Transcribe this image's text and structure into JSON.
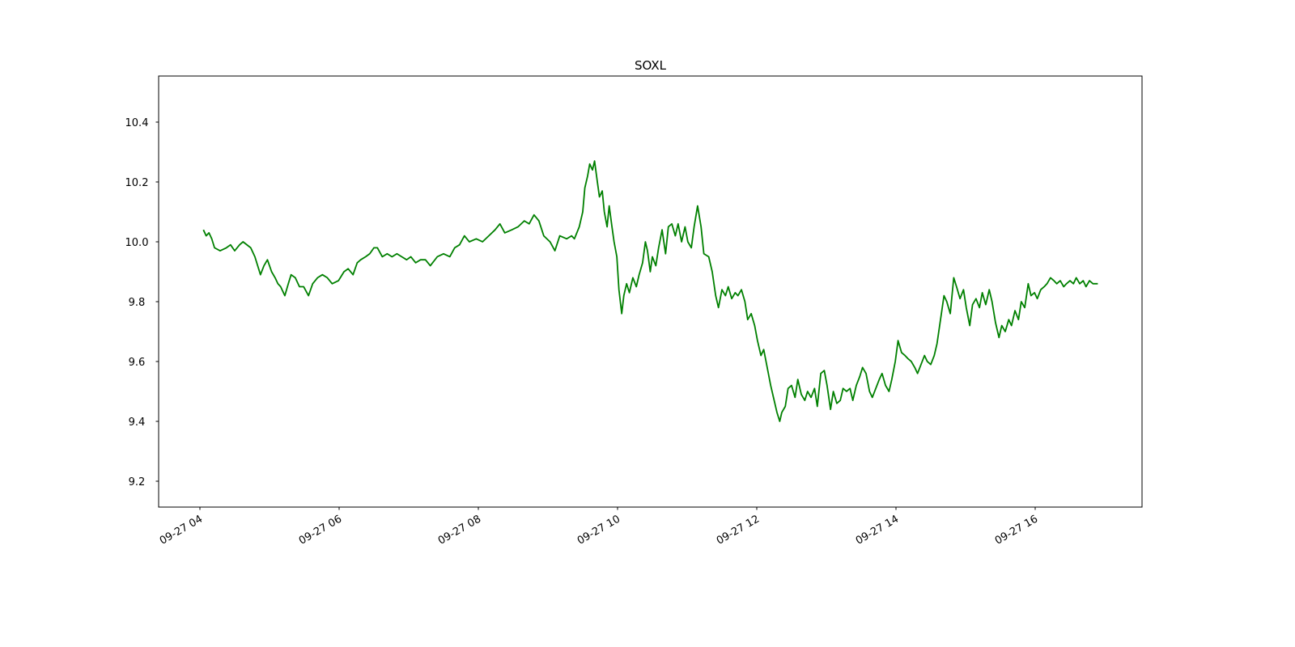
{
  "chart_data": {
    "type": "line",
    "title": "SOXL",
    "color": "#008000",
    "x": [
      4.05,
      4.09,
      4.13,
      4.17,
      4.21,
      4.29,
      4.38,
      4.44,
      4.5,
      4.57,
      4.62,
      4.73,
      4.79,
      4.83,
      4.87,
      4.92,
      4.97,
      5.03,
      5.08,
      5.12,
      5.16,
      5.22,
      5.27,
      5.31,
      5.37,
      5.43,
      5.49,
      5.56,
      5.62,
      5.69,
      5.76,
      5.83,
      5.9,
      5.99,
      6.07,
      6.13,
      6.2,
      6.26,
      6.31,
      6.38,
      6.44,
      6.5,
      6.55,
      6.62,
      6.69,
      6.76,
      6.83,
      6.9,
      6.97,
      7.03,
      7.1,
      7.17,
      7.24,
      7.31,
      7.41,
      7.5,
      7.59,
      7.66,
      7.73,
      7.8,
      7.87,
      7.97,
      8.06,
      8.15,
      8.24,
      8.31,
      8.38,
      8.48,
      8.57,
      8.66,
      8.73,
      8.8,
      8.87,
      8.94,
      9.03,
      9.1,
      9.17,
      9.27,
      9.34,
      9.38,
      9.45,
      9.5,
      9.53,
      9.57,
      9.6,
      9.64,
      9.67,
      9.71,
      9.74,
      9.78,
      9.81,
      9.85,
      9.88,
      9.92,
      9.95,
      9.99,
      10.02,
      10.06,
      10.09,
      10.13,
      10.17,
      10.22,
      10.27,
      10.31,
      10.36,
      10.4,
      10.43,
      10.47,
      10.5,
      10.55,
      10.59,
      10.64,
      10.69,
      10.73,
      10.78,
      10.83,
      10.87,
      10.92,
      10.97,
      11.01,
      11.06,
      11.1,
      11.15,
      11.2,
      11.24,
      11.31,
      11.36,
      11.41,
      11.45,
      11.5,
      11.55,
      11.59,
      11.64,
      11.69,
      11.73,
      11.78,
      11.83,
      11.87,
      11.92,
      11.97,
      12.01,
      12.06,
      12.1,
      12.15,
      12.2,
      12.24,
      12.29,
      12.33,
      12.36,
      12.41,
      12.45,
      12.5,
      12.55,
      12.59,
      12.64,
      12.69,
      12.73,
      12.78,
      12.83,
      12.87,
      12.92,
      12.97,
      13.01,
      13.06,
      13.1,
      13.15,
      13.2,
      13.24,
      13.29,
      13.34,
      13.38,
      13.43,
      13.48,
      13.52,
      13.57,
      13.62,
      13.66,
      13.71,
      13.76,
      13.8,
      13.85,
      13.9,
      13.94,
      13.99,
      14.03,
      14.08,
      14.13,
      14.17,
      14.22,
      14.27,
      14.31,
      14.36,
      14.41,
      14.45,
      14.5,
      14.55,
      14.59,
      14.64,
      14.69,
      14.73,
      14.78,
      14.83,
      14.87,
      14.92,
      14.97,
      15.01,
      15.06,
      15.1,
      15.15,
      15.2,
      15.24,
      15.29,
      15.34,
      15.38,
      15.43,
      15.48,
      15.52,
      15.57,
      15.62,
      15.66,
      15.71,
      15.76,
      15.8,
      15.85,
      15.9,
      15.94,
      15.99,
      16.03,
      16.08,
      16.13,
      16.17,
      16.22,
      16.27,
      16.31,
      16.36,
      16.41,
      16.45,
      16.5,
      16.55,
      16.59,
      16.64,
      16.69,
      16.73,
      16.78,
      16.83,
      16.9
    ],
    "values": [
      10.04,
      10.02,
      10.03,
      10.01,
      9.98,
      9.97,
      9.98,
      9.99,
      9.97,
      9.99,
      10.0,
      9.98,
      9.95,
      9.92,
      9.89,
      9.92,
      9.94,
      9.9,
      9.88,
      9.86,
      9.85,
      9.82,
      9.86,
      9.89,
      9.88,
      9.85,
      9.85,
      9.82,
      9.86,
      9.88,
      9.89,
      9.88,
      9.86,
      9.87,
      9.9,
      9.91,
      9.89,
      9.93,
      9.94,
      9.95,
      9.96,
      9.98,
      9.98,
      9.95,
      9.96,
      9.95,
      9.96,
      9.95,
      9.94,
      9.95,
      9.93,
      9.94,
      9.94,
      9.92,
      9.95,
      9.96,
      9.95,
      9.98,
      9.99,
      10.02,
      10.0,
      10.01,
      10.0,
      10.02,
      10.04,
      10.06,
      10.03,
      10.04,
      10.05,
      10.07,
      10.06,
      10.09,
      10.07,
      10.02,
      10.0,
      9.97,
      10.02,
      10.01,
      10.02,
      10.01,
      10.05,
      10.1,
      10.18,
      10.22,
      10.26,
      10.24,
      10.27,
      10.2,
      10.15,
      10.17,
      10.1,
      10.05,
      10.12,
      10.05,
      10.0,
      9.95,
      9.84,
      9.76,
      9.82,
      9.86,
      9.83,
      9.88,
      9.85,
      9.89,
      9.93,
      10.0,
      9.97,
      9.9,
      9.95,
      9.92,
      9.98,
      10.04,
      9.96,
      10.05,
      10.06,
      10.02,
      10.06,
      10.0,
      10.05,
      10.0,
      9.98,
      10.05,
      10.12,
      10.05,
      9.96,
      9.95,
      9.9,
      9.82,
      9.78,
      9.84,
      9.82,
      9.85,
      9.81,
      9.83,
      9.82,
      9.84,
      9.8,
      9.74,
      9.76,
      9.72,
      9.67,
      9.62,
      9.64,
      9.58,
      9.52,
      9.48,
      9.43,
      9.4,
      9.43,
      9.45,
      9.51,
      9.52,
      9.48,
      9.54,
      9.49,
      9.47,
      9.5,
      9.48,
      9.51,
      9.45,
      9.56,
      9.57,
      9.52,
      9.44,
      9.5,
      9.46,
      9.47,
      9.51,
      9.5,
      9.51,
      9.47,
      9.52,
      9.55,
      9.58,
      9.56,
      9.5,
      9.48,
      9.51,
      9.54,
      9.56,
      9.52,
      9.5,
      9.54,
      9.6,
      9.67,
      9.63,
      9.62,
      9.61,
      9.6,
      9.58,
      9.56,
      9.59,
      9.62,
      9.6,
      9.59,
      9.62,
      9.66,
      9.74,
      9.82,
      9.8,
      9.76,
      9.88,
      9.85,
      9.81,
      9.84,
      9.78,
      9.72,
      9.79,
      9.81,
      9.78,
      9.83,
      9.79,
      9.84,
      9.8,
      9.73,
      9.68,
      9.72,
      9.7,
      9.74,
      9.72,
      9.77,
      9.74,
      9.8,
      9.78,
      9.86,
      9.82,
      9.83,
      9.81,
      9.84,
      9.85,
      9.86,
      9.88,
      9.87,
      9.86,
      9.87,
      9.85,
      9.86,
      9.87,
      9.86,
      9.88,
      9.86,
      9.87,
      9.85,
      9.87,
      9.86,
      9.86
    ],
    "xlim": [
      3.407,
      17.535
    ],
    "xticks": [
      {
        "value": 4,
        "label": "09-27 04"
      },
      {
        "value": 6,
        "label": "09-27 06"
      },
      {
        "value": 8,
        "label": "09-27 08"
      },
      {
        "value": 10,
        "label": "09-27 10"
      },
      {
        "value": 12,
        "label": "09-27 12"
      },
      {
        "value": 14,
        "label": "09-27 14"
      },
      {
        "value": 16,
        "label": "09-27 16"
      }
    ],
    "ylim": [
      9.1135,
      10.554
    ],
    "yticks": [
      9.2,
      9.4,
      9.6,
      9.8,
      {
        "value": 10,
        "label": "10.0"
      },
      10.2,
      10.4
    ],
    "grid": false
  }
}
